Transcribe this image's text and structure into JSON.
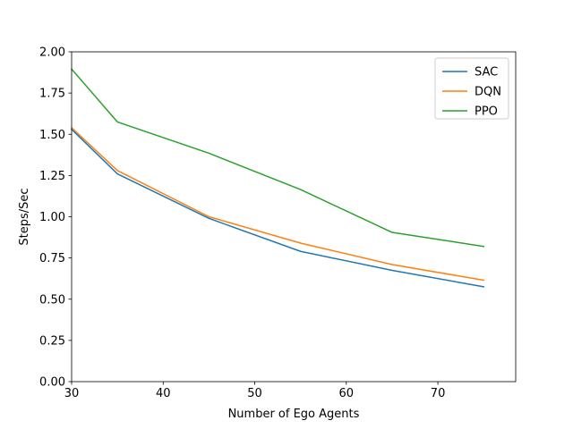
{
  "chart_data": {
    "type": "line",
    "xlabel": "Number of Ego Agents",
    "ylabel": "Steps/Sec",
    "xlim": [
      30,
      78.5
    ],
    "ylim": [
      0,
      2.0
    ],
    "xticks": [
      30,
      40,
      50,
      60,
      70
    ],
    "xtick_labels": [
      "30",
      "40",
      "50",
      "60",
      "70"
    ],
    "yticks": [
      0,
      0.25,
      0.5,
      0.75,
      1.0,
      1.25,
      1.5,
      1.75,
      2.0
    ],
    "ytick_labels": [
      "0.00",
      "0.25",
      "0.50",
      "0.75",
      "1.00",
      "1.25",
      "1.50",
      "1.75",
      "2.00"
    ],
    "grid": false,
    "legend_position": "top-right",
    "x": [
      30,
      35,
      45,
      55,
      65,
      75
    ],
    "series": [
      {
        "name": "SAC",
        "color": "#1f77b4",
        "values": [
          1.53,
          1.26,
          0.99,
          0.79,
          0.675,
          0.575
        ]
      },
      {
        "name": "DQN",
        "color": "#ff7f0e",
        "values": [
          1.54,
          1.28,
          1.0,
          0.84,
          0.71,
          0.615
        ]
      },
      {
        "name": "PPO",
        "color": "#2ca02c",
        "values": [
          1.895,
          1.575,
          1.385,
          1.165,
          0.905,
          0.82
        ]
      }
    ]
  }
}
